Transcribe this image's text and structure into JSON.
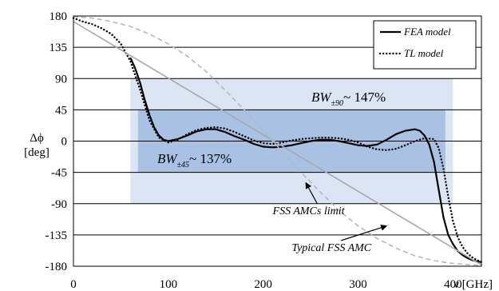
{
  "chart_data": {
    "type": "line",
    "xlabel": "ν [GHz]",
    "ylabel": "Δϕ",
    "ylabel_unit": "[deg]",
    "xlim": [
      0,
      430
    ],
    "ylim": [
      -180,
      180
    ],
    "x_ticks": [
      0,
      100,
      200,
      300,
      400
    ],
    "y_ticks": [
      180,
      135,
      90,
      45,
      0,
      -45,
      -90,
      -135,
      -180
    ],
    "grid": "horizontal",
    "legend_position": "top-right",
    "bands": [
      {
        "label_main": "BW",
        "label_sub": "±90",
        "label_value": "~ 147%",
        "x_range": [
          60,
          400
        ],
        "y_range": [
          -90,
          90
        ],
        "color": "#dbe5f3"
      },
      {
        "label_main": "BW",
        "label_sub": "±45",
        "label_value": "~ 137%",
        "x_range": [
          68,
          392
        ],
        "y_range": [
          -45,
          45
        ],
        "color": "#a9c1e2"
      }
    ],
    "series": [
      {
        "name": "FEA model",
        "style": "solid",
        "color": "#000000",
        "x": [
          60,
          65,
          70,
          75,
          80,
          85,
          90,
          95,
          100,
          110,
          120,
          130,
          140,
          150,
          160,
          170,
          180,
          190,
          200,
          210,
          220,
          230,
          240,
          250,
          260,
          270,
          280,
          290,
          300,
          310,
          320,
          330,
          340,
          350,
          360,
          365,
          370,
          375,
          380,
          385,
          390,
          395,
          400,
          405,
          410,
          415,
          420,
          425,
          430
        ],
        "y": [
          120,
          105,
          85,
          60,
          38,
          20,
          8,
          2,
          0,
          3,
          8,
          14,
          17,
          17,
          13,
          7,
          2,
          -4,
          -8,
          -9,
          -8,
          -6,
          -3,
          0,
          2,
          2,
          0,
          -3,
          -6,
          -7,
          -5,
          2,
          10,
          15,
          17,
          15,
          8,
          -5,
          -30,
          -70,
          -110,
          -135,
          -148,
          -158,
          -164,
          -168,
          -171,
          -173,
          -174
        ]
      },
      {
        "name": "TL model",
        "style": "dotted",
        "color": "#000000",
        "x": [
          0,
          10,
          20,
          30,
          40,
          50,
          60,
          70,
          80,
          90,
          100,
          110,
          120,
          130,
          140,
          150,
          160,
          170,
          180,
          190,
          200,
          210,
          220,
          230,
          240,
          250,
          260,
          270,
          280,
          290,
          300,
          310,
          320,
          330,
          340,
          350,
          360,
          370,
          380,
          385,
          390,
          395,
          400,
          405,
          410,
          415,
          420,
          425,
          430
        ],
        "y": [
          177,
          172,
          168,
          162,
          154,
          140,
          115,
          75,
          30,
          5,
          -2,
          2,
          10,
          16,
          19,
          20,
          18,
          13,
          7,
          1,
          -3,
          -4,
          -2,
          1,
          3,
          4,
          5,
          5,
          4,
          2,
          -2,
          -8,
          -12,
          -13,
          -11,
          -6,
          0,
          4,
          3,
          -10,
          -40,
          -80,
          -115,
          -138,
          -152,
          -161,
          -167,
          -171,
          -174
        ]
      },
      {
        "name": "FSS AMCs limit",
        "style": "solid",
        "color": "#a6a9ae",
        "x": [
          0,
          430
        ],
        "y": [
          172,
          -178
        ]
      },
      {
        "name": "Typical FSS AMC",
        "style": "dashed",
        "color": "#b3b8c3",
        "x": [
          0,
          20,
          40,
          60,
          80,
          100,
          120,
          140,
          160,
          180,
          200,
          220,
          240,
          260,
          280,
          300,
          320,
          340,
          360,
          380,
          400,
          420,
          430
        ],
        "y": [
          179,
          177,
          172,
          165,
          154,
          140,
          122,
          100,
          73,
          45,
          15,
          -15,
          -45,
          -73,
          -100,
          -122,
          -140,
          -154,
          -165,
          -172,
          -176,
          -178,
          -179
        ]
      }
    ],
    "annotations": [
      {
        "text": "FSS AMCs limit",
        "x": 210,
        "y": -105,
        "arrow_to": [
          245,
          -60
        ]
      },
      {
        "text": "Typical FSS AMC",
        "x": 230,
        "y": -158,
        "arrow_to": [
          330,
          -122
        ]
      }
    ]
  }
}
